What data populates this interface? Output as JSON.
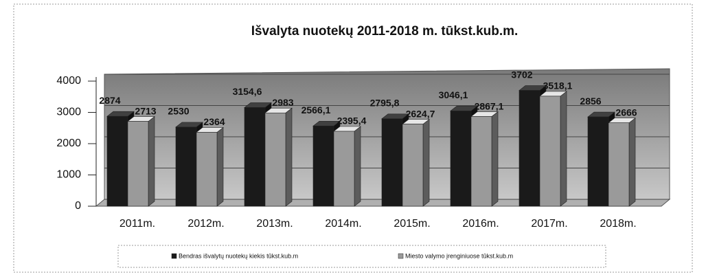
{
  "chart_data": {
    "type": "bar3d",
    "title": "Išvalyta nuotekų 2011-2018 m. tūkst.kub.m.",
    "categories": [
      "2011m.",
      "2012m.",
      "2013m.",
      "2014m.",
      "2015m.",
      "2016m.",
      "2017m.",
      "2018m."
    ],
    "series": [
      {
        "name": "Bendras išvalytų nuotekų kiekis tūkst.kub.m",
        "color": "#1a1a1a",
        "values": [
          2874,
          2530,
          3154.6,
          2566.1,
          2795.8,
          3046.1,
          3702,
          2856
        ],
        "value_labels": [
          "2874",
          "2530",
          "3154,6",
          "2566,1",
          "2795,8",
          "3046,1",
          "3702",
          "2856"
        ]
      },
      {
        "name": "Miesto valymo įrenginiuose tūkst.kub.m",
        "color": "#9a9a9a",
        "values": [
          2713,
          2364,
          2983,
          2395.4,
          2624.7,
          2867.1,
          3518.1,
          2666
        ],
        "value_labels": [
          "2713",
          "2364",
          "2983",
          "2395,4",
          "2624,7",
          "2867,1",
          "3518,1",
          "2666"
        ]
      }
    ],
    "ylim": [
      0,
      4000
    ],
    "yticks": [
      0,
      1000,
      2000,
      3000,
      4000
    ],
    "grid": true,
    "legend": "bottom"
  }
}
